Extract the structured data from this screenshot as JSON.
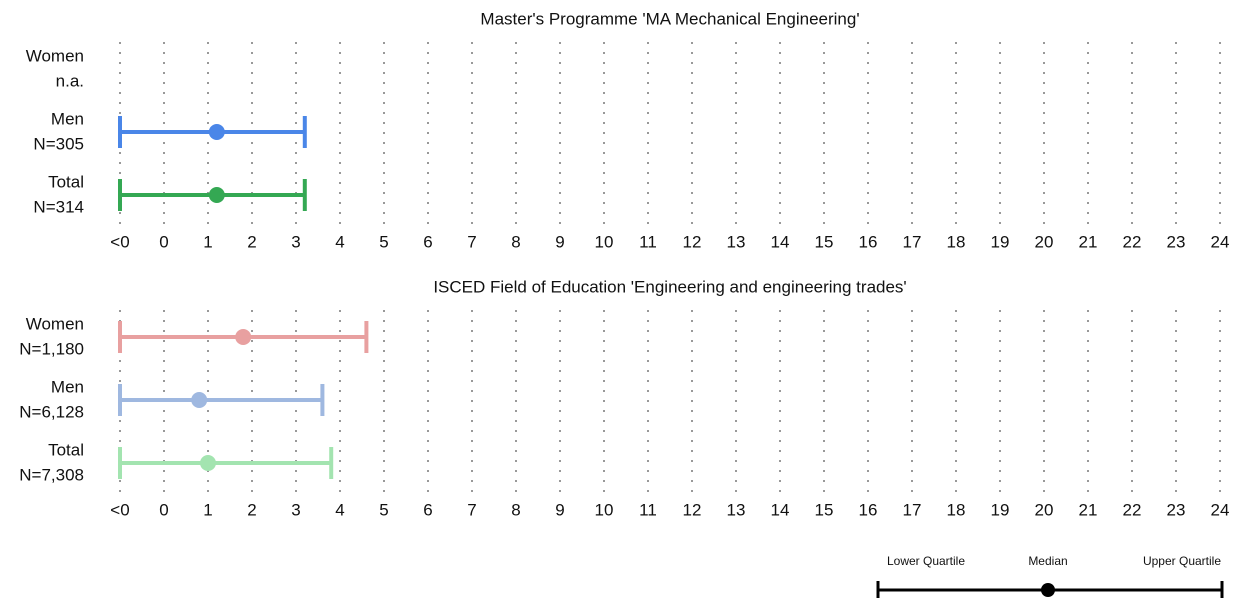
{
  "chart_data": [
    {
      "type": "quartile-range",
      "title": "Master's Programme 'MA Mechanical Engineering'",
      "categories": [
        "Women",
        "Men",
        "Total"
      ],
      "counts": [
        "n.a.",
        "N=305",
        "N=314"
      ],
      "colors": [
        null,
        "#4a86e8",
        "#34a853"
      ],
      "lower": [
        null,
        -1,
        -1
      ],
      "median": [
        null,
        1.2,
        1.2
      ],
      "upper": [
        null,
        3.2,
        3.2
      ],
      "xlim": [
        -1,
        24
      ],
      "xticks": [
        {
          "value": -1,
          "label": "<0"
        },
        0,
        1,
        2,
        3,
        4,
        5,
        6,
        7,
        8,
        9,
        10,
        11,
        12,
        13,
        14,
        15,
        16,
        17,
        18,
        19,
        20,
        21,
        22,
        23,
        24
      ],
      "grid": true
    },
    {
      "type": "quartile-range",
      "title": "ISCED Field of Education 'Engineering and engineering trades'",
      "categories": [
        "Women",
        "Men",
        "Total"
      ],
      "counts": [
        "N=1,180",
        "N=6,128",
        "N=7,308"
      ],
      "colors": [
        "#e8a0a0",
        "#9fb8e0",
        "#a3e4b0"
      ],
      "lower": [
        -1,
        -1,
        -1
      ],
      "median": [
        1.8,
        0.8,
        1.0
      ],
      "upper": [
        4.6,
        3.6,
        3.8
      ],
      "xlim": [
        -1,
        24
      ],
      "xticks": [
        {
          "value": -1,
          "label": "<0"
        },
        0,
        1,
        2,
        3,
        4,
        5,
        6,
        7,
        8,
        9,
        10,
        11,
        12,
        13,
        14,
        15,
        16,
        17,
        18,
        19,
        20,
        21,
        22,
        23,
        24
      ],
      "grid": true
    }
  ],
  "legend": {
    "labels": [
      "Lower Quartile",
      "Median",
      "Upper Quartile"
    ]
  }
}
